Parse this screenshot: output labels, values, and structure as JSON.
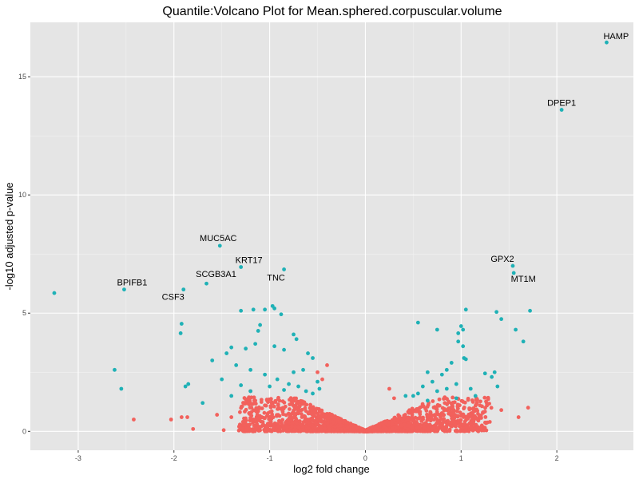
{
  "chart_data": {
    "type": "scatter",
    "title": "Quantile:Volcano Plot for Mean.sphered.corpuscular.volume",
    "xlabel": "log2 fold change",
    "ylabel": "-log10 adjusted p-value",
    "xlim": [
      -3.5,
      2.8
    ],
    "ylim": [
      -0.8,
      17.3
    ],
    "x_ticks": [
      -3,
      -2,
      -1,
      0,
      1,
      2
    ],
    "y_ticks": [
      0,
      5,
      10,
      15
    ],
    "grid": true,
    "legend": "none",
    "colors": {
      "panel_background": "#e5e5e5",
      "grid_major": "#ffffff",
      "significant": "#1fb1b6",
      "not_significant": "#f2615c"
    },
    "labeled_points": [
      {
        "gene": "HAMP",
        "x": 2.52,
        "y": 16.45
      },
      {
        "gene": "DPEP1",
        "x": 2.05,
        "y": 13.6
      },
      {
        "gene": "MUC5AC",
        "x": -1.52,
        "y": 7.85
      },
      {
        "gene": "KRT17",
        "x": -1.3,
        "y": 6.95
      },
      {
        "gene": "TNC",
        "x": -0.85,
        "y": 6.85
      },
      {
        "gene": "GPX2",
        "x": 1.54,
        "y": 7.0
      },
      {
        "gene": "MT1M",
        "x": 1.55,
        "y": 6.7
      },
      {
        "gene": "BPIFB1",
        "x": -2.52,
        "y": 6.0
      },
      {
        "gene": "SCGB3A1",
        "x": -1.66,
        "y": 6.25
      },
      {
        "gene": "CSF3",
        "x": -1.9,
        "y": 6.0
      }
    ],
    "other_points": {
      "significant": [
        [
          -3.25,
          5.85
        ],
        [
          -2.62,
          2.6
        ],
        [
          -2.55,
          1.8
        ],
        [
          -1.92,
          4.55
        ],
        [
          -1.93,
          4.15
        ],
        [
          -1.88,
          1.9
        ],
        [
          -1.85,
          2.0
        ],
        [
          -1.7,
          1.2
        ],
        [
          -1.3,
          5.1
        ],
        [
          -1.17,
          5.15
        ],
        [
          -1.05,
          5.15
        ],
        [
          -0.97,
          5.3
        ],
        [
          -0.95,
          5.2
        ],
        [
          -0.88,
          4.95
        ],
        [
          -1.1,
          4.5
        ],
        [
          -1.12,
          4.25
        ],
        [
          -0.75,
          4.1
        ],
        [
          -0.72,
          3.9
        ],
        [
          -1.45,
          3.3
        ],
        [
          -1.4,
          3.55
        ],
        [
          -1.25,
          3.5
        ],
        [
          -1.15,
          3.7
        ],
        [
          -0.95,
          3.6
        ],
        [
          -0.85,
          3.45
        ],
        [
          -0.6,
          3.3
        ],
        [
          -0.55,
          3.1
        ],
        [
          -1.6,
          3.0
        ],
        [
          -1.35,
          2.8
        ],
        [
          -1.2,
          2.6
        ],
        [
          -1.05,
          2.4
        ],
        [
          -0.92,
          2.2
        ],
        [
          -0.8,
          2.0
        ],
        [
          -0.7,
          1.9
        ],
        [
          -0.62,
          1.7
        ],
        [
          -0.55,
          1.6
        ],
        [
          -1.5,
          2.2
        ],
        [
          -1.3,
          1.95
        ],
        [
          -1.0,
          1.9
        ],
        [
          -0.85,
          1.75
        ],
        [
          -0.75,
          2.5
        ],
        [
          -0.65,
          2.6
        ],
        [
          -1.4,
          1.5
        ],
        [
          -1.2,
          1.7
        ],
        [
          -0.5,
          2.1
        ],
        [
          -0.48,
          1.8
        ],
        [
          1.05,
          5.15
        ],
        [
          1.37,
          5.05
        ],
        [
          1.42,
          4.75
        ],
        [
          1.72,
          5.1
        ],
        [
          1.57,
          4.3
        ],
        [
          0.55,
          4.6
        ],
        [
          1.0,
          4.45
        ],
        [
          1.02,
          4.3
        ],
        [
          0.97,
          4.15
        ],
        [
          0.75,
          4.3
        ],
        [
          0.97,
          3.8
        ],
        [
          1.02,
          3.6
        ],
        [
          1.03,
          3.1
        ],
        [
          1.05,
          3.05
        ],
        [
          1.65,
          3.8
        ],
        [
          1.25,
          2.45
        ],
        [
          1.32,
          2.3
        ],
        [
          1.35,
          2.5
        ],
        [
          1.38,
          1.9
        ],
        [
          0.9,
          2.9
        ],
        [
          0.85,
          2.6
        ],
        [
          0.8,
          2.4
        ],
        [
          0.7,
          2.1
        ],
        [
          0.65,
          2.5
        ],
        [
          0.6,
          1.9
        ],
        [
          0.55,
          1.6
        ],
        [
          0.5,
          1.5
        ],
        [
          0.75,
          1.7
        ],
        [
          0.85,
          1.8
        ],
        [
          0.95,
          2.0
        ],
        [
          1.1,
          1.8
        ],
        [
          1.15,
          1.5
        ],
        [
          0.42,
          1.5
        ],
        [
          0.65,
          1.3
        ],
        [
          0.95,
          1.4
        ]
      ],
      "not_significant": [
        [
          -2.42,
          0.5
        ],
        [
          -2.03,
          0.5
        ],
        [
          -1.92,
          0.6
        ],
        [
          -1.86,
          0.6
        ],
        [
          -1.8,
          0.1
        ],
        [
          -1.48,
          0.05
        ],
        [
          -1.55,
          0.7
        ],
        [
          -1.4,
          0.6
        ],
        [
          -1.2,
          1.7
        ],
        [
          -1.05,
          1.1
        ],
        [
          1.6,
          0.6
        ],
        [
          1.7,
          1.0
        ],
        [
          1.42,
          0.9
        ],
        [
          1.3,
          0.4
        ],
        [
          1.2,
          0.15
        ],
        [
          1.1,
          0.75
        ],
        [
          0.25,
          1.8
        ],
        [
          0.3,
          1.4
        ],
        [
          -0.4,
          2.8
        ],
        [
          -0.5,
          2.5
        ],
        [
          -0.45,
          2.2
        ]
      ]
    }
  }
}
